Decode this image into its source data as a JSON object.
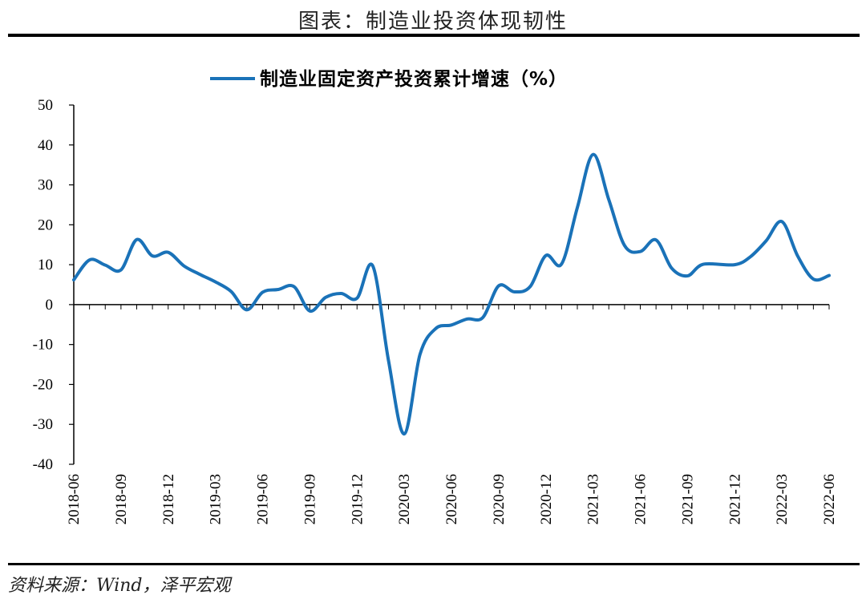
{
  "page_title": "图表：制造业投资体现韧性",
  "source_text": "资料来源：Wind，泽平宏观",
  "colors": {
    "series": "#1a72b8",
    "axis": "#000000",
    "rule": "#000000"
  },
  "chart_data": {
    "type": "line",
    "title": "",
    "xlabel": "",
    "ylabel": "",
    "ylim": [
      -40,
      50
    ],
    "yticks": [
      50,
      40,
      30,
      20,
      10,
      0,
      -10,
      -20,
      -30,
      -40
    ],
    "grid": false,
    "legend_position": "top",
    "x_tick_labels": [
      "2018-06",
      "2018-09",
      "2018-12",
      "2019-03",
      "2019-06",
      "2019-09",
      "2019-12",
      "2020-03",
      "2020-06",
      "2020-09",
      "2020-12",
      "2021-03",
      "2021-06",
      "2021-09",
      "2021-12",
      "2022-03",
      "2022-06"
    ],
    "series": [
      {
        "name": "制造业固定资产投资累计增速（%）",
        "x": [
          "2018-06",
          "2018-07",
          "2018-08",
          "2018-09",
          "2018-10",
          "2018-11",
          "2018-12",
          "2019-01",
          "2019-02",
          "2019-03",
          "2019-04",
          "2019-05",
          "2019-06",
          "2019-07",
          "2019-08",
          "2019-09",
          "2019-10",
          "2019-11",
          "2019-12",
          "2020-01",
          "2020-02",
          "2020-03",
          "2020-04",
          "2020-05",
          "2020-06",
          "2020-07",
          "2020-08",
          "2020-09",
          "2020-10",
          "2020-11",
          "2020-12",
          "2021-01",
          "2021-02",
          "2021-03",
          "2021-04",
          "2021-05",
          "2021-06",
          "2021-07",
          "2021-08",
          "2021-09",
          "2021-10",
          "2021-12",
          "2022-01",
          "2022-02",
          "2022-03",
          "2022-04",
          "2022-05",
          "2022-06"
        ],
        "values": [
          6.2,
          11.2,
          9.9,
          8.7,
          16.3,
          12.2,
          13.1,
          9.7,
          7.6,
          5.7,
          3.3,
          -1.3,
          3.1,
          3.8,
          4.5,
          -1.6,
          1.8,
          2.8,
          1.6,
          9.7,
          -14.0,
          -32.4,
          -12.5,
          -6.0,
          -5.1,
          -3.6,
          -3.2,
          4.7,
          3.2,
          4.5,
          12.3,
          10.2,
          24.3,
          37.6,
          26.3,
          14.8,
          13.3,
          16.2,
          9.1,
          7.2,
          10.1,
          10.0,
          12.0,
          16.0,
          20.8,
          12.2,
          6.4,
          7.3
        ]
      }
    ]
  }
}
